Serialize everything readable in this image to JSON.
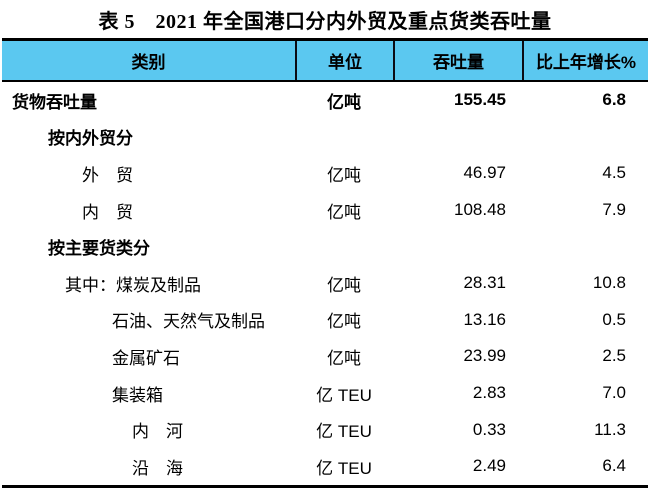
{
  "title": "表 5　2021 年全国港口分内外贸及重点货类吞吐量",
  "colors": {
    "header_bg": "#5BC8F0",
    "border": "#000000",
    "separator": "#0B0B14",
    "text": "#000000"
  },
  "table": {
    "headers": [
      "类别",
      "单位",
      "吞吐量",
      "比上年增长%"
    ],
    "rows": [
      {
        "label": "货物吞吐量",
        "unit": "亿吨",
        "value": "155.45",
        "growth": "6.8"
      },
      {
        "label": "按内外贸分",
        "unit": "",
        "value": "",
        "growth": ""
      },
      {
        "label": "外　贸",
        "unit": "亿吨",
        "value": "46.97",
        "growth": "4.5"
      },
      {
        "label": "内　贸",
        "unit": "亿吨",
        "value": "108.48",
        "growth": "7.9"
      },
      {
        "label": "按主要货类分",
        "unit": "",
        "value": "",
        "growth": ""
      },
      {
        "label": "其中：煤炭及制品",
        "unit": "亿吨",
        "value": "28.31",
        "growth": "10.8"
      },
      {
        "label": "石油、天然气及制品",
        "unit": "亿吨",
        "value": "13.16",
        "growth": "0.5"
      },
      {
        "label": "金属矿石",
        "unit": "亿吨",
        "value": "23.99",
        "growth": "2.5"
      },
      {
        "label": "集装箱",
        "unit": "亿 TEU",
        "value": "2.83",
        "growth": "7.0"
      },
      {
        "label": "内　河",
        "unit": "亿 TEU",
        "value": "0.33",
        "growth": "11.3"
      },
      {
        "label": "沿　海",
        "unit": "亿 TEU",
        "value": "2.49",
        "growth": "6.4"
      }
    ]
  }
}
